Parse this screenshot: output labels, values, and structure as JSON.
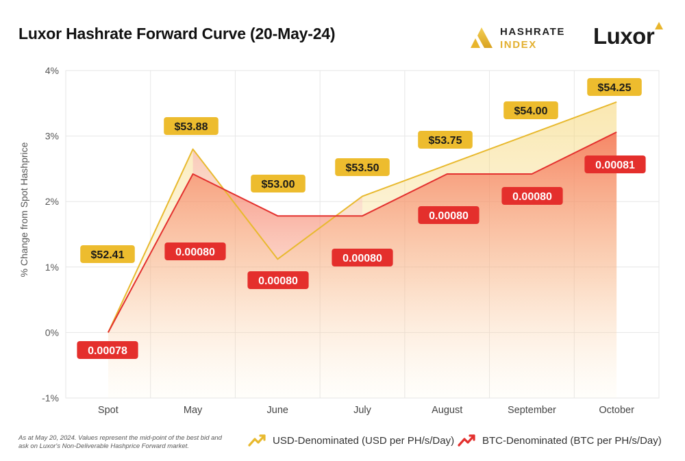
{
  "title": "Luxor Hashrate Forward Curve (20-May-24)",
  "logos": {
    "hashrate_line1": "HASHRATE",
    "hashrate_line2": "INDEX",
    "luxor": "Luxor"
  },
  "footnote": "As at May 20, 2024. Values represent the mid-point of the best bid and ask on Luxor's Non-Deliverable Hashprice Forward market.",
  "legend": {
    "usd": "USD-Denominated (USD per PH/s/Day)",
    "btc": "BTC-Denominated (BTC per PH/s/Day)"
  },
  "colors": {
    "usd_line": "#e8b92e",
    "usd_badge": "#edbc2e",
    "btc_line": "#e3302e",
    "btc_badge": "#e42f2c",
    "grid": "#e6e6e6"
  },
  "chart_data": {
    "type": "line",
    "title": "Luxor Hashrate Forward Curve (20-May-24)",
    "xlabel": "",
    "ylabel": "% Change from Spot Hashprice",
    "categories": [
      "Spot",
      "May",
      "June",
      "July",
      "August",
      "September",
      "October"
    ],
    "ylim": [
      -1,
      4
    ],
    "yticks": [
      -1,
      0,
      1,
      2,
      3,
      4
    ],
    "ytick_labels": [
      "-1%",
      "0%",
      "1%",
      "2%",
      "3%",
      "4%"
    ],
    "series": [
      {
        "name": "USD-Denominated (USD per PH/s/Day)",
        "values": [
          0,
          2.8,
          1.12,
          2.08,
          null,
          null,
          3.52
        ],
        "labels": [
          "$52.41",
          "$53.88",
          "$53.00",
          "$53.50",
          "$53.75",
          "$54.00",
          "$54.25"
        ]
      },
      {
        "name": "BTC-Denominated (BTC per PH/s/Day)",
        "values": [
          0,
          2.42,
          1.78,
          1.78,
          2.42,
          2.42,
          3.06
        ],
        "labels": [
          "0.00078",
          "0.00080",
          "0.00080",
          "0.00080",
          "0.00080",
          "0.00080",
          "0.00081"
        ]
      }
    ]
  }
}
